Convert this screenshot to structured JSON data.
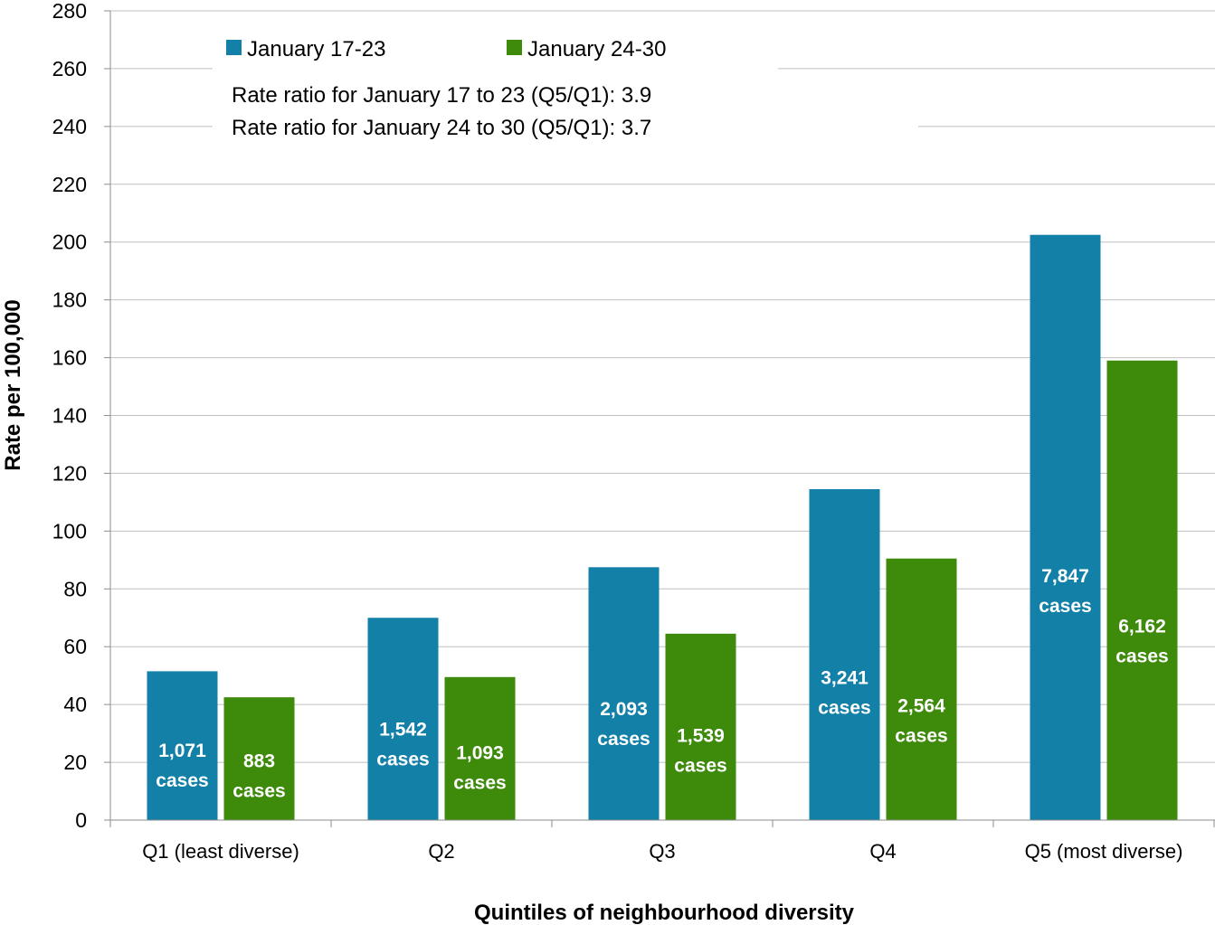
{
  "chart_data": {
    "type": "bar",
    "title": "",
    "xlabel": "Quintiles of neighbourhood diversity",
    "ylabel": "Rate per 100,000",
    "ylim": [
      0,
      280
    ],
    "yticks": [
      0,
      20,
      40,
      60,
      80,
      100,
      120,
      140,
      160,
      180,
      200,
      220,
      240,
      260,
      280
    ],
    "grid": true,
    "legend_position": "top-left",
    "categories": [
      "Q1 (least diverse)",
      "Q2",
      "Q3",
      "Q4",
      "Q5 (most diverse)"
    ],
    "series": [
      {
        "name": "January 17-23",
        "color": "#1380a8",
        "values": [
          51.5,
          70,
          87.5,
          114.5,
          202.5
        ],
        "labels": [
          [
            "1,071",
            "cases"
          ],
          [
            "1,542",
            "cases"
          ],
          [
            "2,093",
            "cases"
          ],
          [
            "3,241",
            "cases"
          ],
          [
            "7,847",
            "cases"
          ]
        ]
      },
      {
        "name": "January 24-30",
        "color": "#3e8a0b",
        "values": [
          42.5,
          49.5,
          64.5,
          90.5,
          159
        ],
        "labels": [
          [
            "883",
            "cases"
          ],
          [
            "1,093",
            "cases"
          ],
          [
            "1,539",
            "cases"
          ],
          [
            "2,564",
            "cases"
          ],
          [
            "6,162",
            "cases"
          ]
        ]
      }
    ],
    "annotations": [
      "Rate ratio for January 17 to 23 (Q5/Q1): 3.9",
      "Rate ratio for January 24 to 30 (Q5/Q1): 3.7"
    ]
  }
}
